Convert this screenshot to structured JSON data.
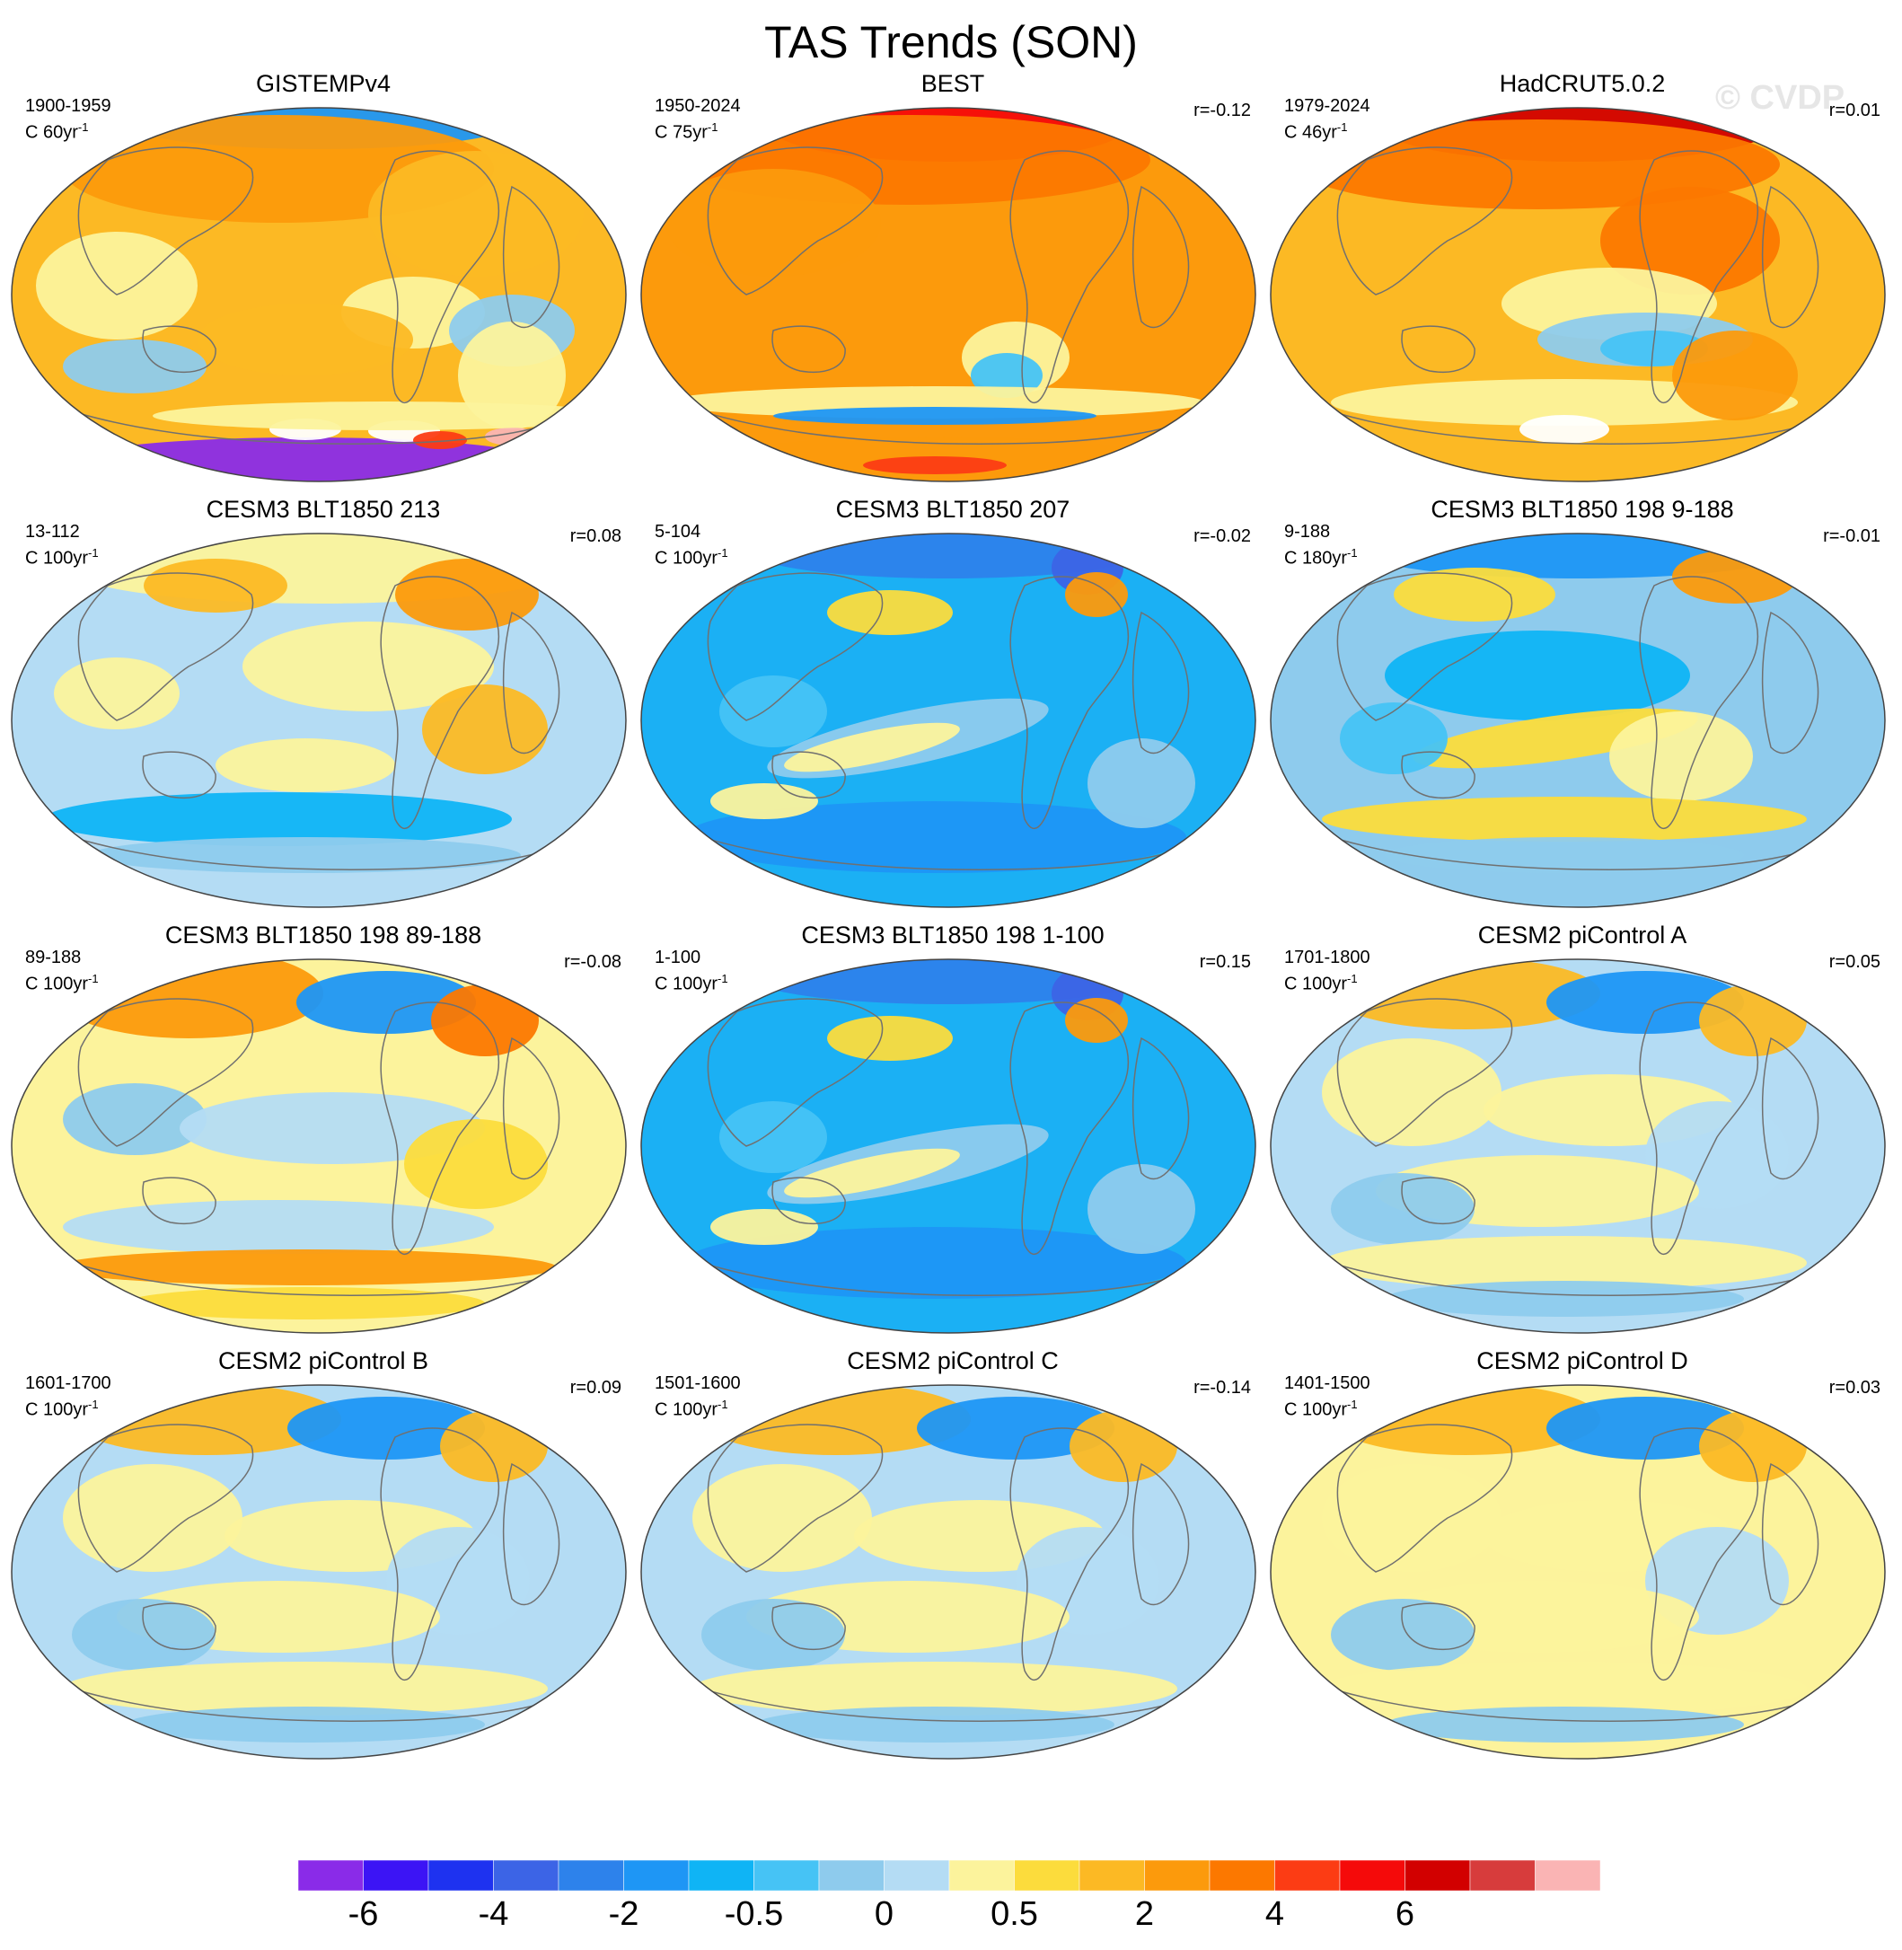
{
  "title": "TAS Trends (SON)",
  "watermark": "© CVDP",
  "panels": [
    {
      "id": "gistemp",
      "title": "GISTEMPv4",
      "period": "1900-1959",
      "scale": "C 60yr",
      "scale_sup": "-1",
      "corr": "",
      "base": "#fcb924",
      "hint": "obs1900"
    },
    {
      "id": "best",
      "title": "BEST",
      "period": "1950-2024",
      "scale": "C 75yr",
      "scale_sup": "-1",
      "corr": "r=-0.12",
      "base": "#fc9a0c",
      "hint": "warm"
    },
    {
      "id": "hadcrut",
      "title": "HadCRUT5.0.2",
      "period": "1979-2024",
      "scale": "C 46yr",
      "scale_sup": "-1",
      "corr": "r=0.01",
      "base": "#fcb924",
      "hint": "warmhad"
    },
    {
      "id": "cesm3-213",
      "title": "CESM3 BLT1850 213",
      "period": "13-112",
      "scale": "C 100yr",
      "scale_sup": "-1",
      "corr": "r=0.08",
      "base": "#b4dcf4",
      "hint": "mixed"
    },
    {
      "id": "cesm3-207",
      "title": "CESM3 BLT1850 207",
      "period": "5-104",
      "scale": "C 100yr",
      "scale_sup": "-1",
      "corr": "r=-0.02",
      "base": "#1bb0f4",
      "hint": "cold"
    },
    {
      "id": "cesm3-198-9",
      "title": "CESM3 BLT1850 198 9-188",
      "period": "9-188",
      "scale": "C 180yr",
      "scale_sup": "-1",
      "corr": "r=-0.01",
      "base": "#8ecbed",
      "hint": "coolmix"
    },
    {
      "id": "cesm3-198-89",
      "title": "CESM3 BLT1850 198 89-188",
      "period": "89-188",
      "scale": "C 100yr",
      "scale_sup": "-1",
      "corr": "r=-0.08",
      "base": "#fcf39c",
      "hint": "yellowmix"
    },
    {
      "id": "cesm3-198-1",
      "title": "CESM3 BLT1850 198 1-100",
      "period": "1-100",
      "scale": "C 100yr",
      "scale_sup": "-1",
      "corr": "r=0.15",
      "base": "#1bb0f4",
      "hint": "cold"
    },
    {
      "id": "cesm2-a",
      "title": "CESM2 piControl A",
      "period": "1701-1800",
      "scale": "C 100yr",
      "scale_sup": "-1",
      "corr": "r=0.05",
      "base": "#b4dcf4",
      "hint": "palemix"
    },
    {
      "id": "cesm2-b",
      "title": "CESM2 piControl B",
      "period": "1601-1700",
      "scale": "C 100yr",
      "scale_sup": "-1",
      "corr": "r=0.09",
      "base": "#b4dcf4",
      "hint": "palemix"
    },
    {
      "id": "cesm2-c",
      "title": "CESM2 piControl C",
      "period": "1501-1600",
      "scale": "C 100yr",
      "scale_sup": "-1",
      "corr": "r=-0.14",
      "base": "#b4dcf4",
      "hint": "palemix"
    },
    {
      "id": "cesm2-d",
      "title": "CESM2 piControl D",
      "period": "1401-1500",
      "scale": "C 100yr",
      "scale_sup": "-1",
      "corr": "r=0.03",
      "base": "#fcf39c",
      "hint": "palemix"
    }
  ],
  "colorbar": {
    "colors": [
      "#8a2be8",
      "#3c14f5",
      "#1e32f0",
      "#3c64e6",
      "#2d82eb",
      "#1e96f5",
      "#0fb4f5",
      "#46c3f5",
      "#8ecbed",
      "#b4dcf4",
      "#fcf39c",
      "#fcdc3c",
      "#fcb924",
      "#fc9a0c",
      "#fc7800",
      "#fc3c14",
      "#f50a0a",
      "#d20000",
      "#d73c3c",
      "#fab4b4"
    ],
    "labels": [
      "-6",
      "-4",
      "-2",
      "-0.5",
      "0",
      "0.5",
      "2",
      "4",
      "6"
    ]
  }
}
